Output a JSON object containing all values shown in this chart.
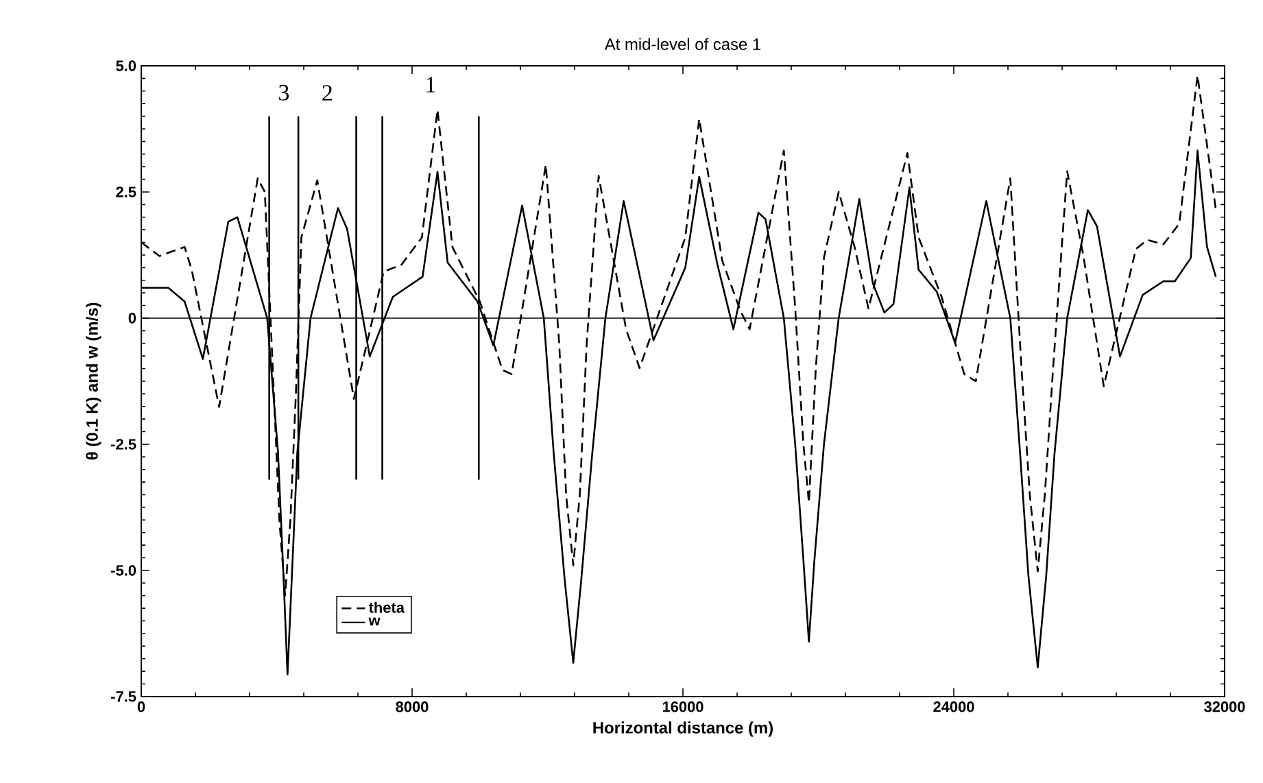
{
  "chart_data": {
    "type": "line",
    "title": "At mid-level of case 1",
    "xlabel": "Horizontal distance  (m)",
    "ylabel": "θ (0.1 K) and w (m/s)",
    "xlim": [
      0,
      32000
    ],
    "xticks": [
      0,
      8000,
      16000,
      24000,
      32000
    ],
    "ylim": [
      -7.5,
      5
    ],
    "yticks": [
      {
        "value": 5,
        "label": "5.0"
      },
      {
        "value": 2.5,
        "label": "2.5"
      },
      0,
      {
        "value": -2.5,
        "label": "-2.5"
      },
      {
        "value": -5,
        "label": "-5.0"
      },
      {
        "value": -7.5,
        "label": "-7.5"
      }
    ],
    "grid": false,
    "legend": "bottom left",
    "ref_lines": [
      {
        "axis": "y",
        "value": 0,
        "color": "#000000",
        "line_style": "solid"
      }
    ],
    "annotations": [
      "3",
      "2",
      "1"
    ],
    "series": [
      {
        "name": "theta",
        "color": "#000000",
        "line_style": "dashed",
        "x": [
          0,
          540,
          1280,
          1490,
          2300,
          3440,
          3650,
          3918,
          4080,
          4250,
          4405,
          4567,
          4730,
          5200,
          6280,
          7160,
          7690,
          8290,
          8750,
          9190,
          10000,
          10670,
          10940,
          11950,
          12346,
          12549,
          12760,
          12954,
          13157,
          13510,
          14320,
          14720,
          16070,
          16480,
          17160,
          17700,
          17970,
          18980,
          19316,
          19559,
          19721,
          19924,
          20166,
          20600,
          21070,
          21480,
          22630,
          22962,
          23640,
          24310,
          24650,
          25670,
          26002,
          26245,
          26480,
          26690,
          26933,
          27350,
          27830,
          28430,
          29380,
          29720,
          30190,
          30660,
          31200,
          31740
        ],
        "values": [
          1.5,
          1.23,
          1.41,
          0.96,
          -1.76,
          2.77,
          2.5,
          -1.5,
          -4.0,
          -5.5,
          -4.0,
          -1.5,
          1.6,
          2.73,
          -1.6,
          0.92,
          1.06,
          1.6,
          4.13,
          1.41,
          0.33,
          -1.03,
          -1.11,
          3.04,
          -0.5,
          -3.5,
          -4.9,
          -3.5,
          -0.5,
          2.82,
          -0.22,
          -0.99,
          1.6,
          3.95,
          1.14,
          0.14,
          -0.22,
          3.32,
          0.2,
          -2.5,
          -3.66,
          -1.0,
          1.2,
          2.5,
          1.41,
          0.19,
          3.27,
          1.6,
          0.42,
          -1.11,
          -1.25,
          2.77,
          -1.0,
          -3.5,
          -5.02,
          -3.5,
          -1.0,
          2.91,
          1.23,
          -1.35,
          1.37,
          1.55,
          1.46,
          1.87,
          4.81,
          2.15
        ]
      },
      {
        "name": "w",
        "color": "#000000",
        "line_style": "solid",
        "x": [
          0,
          800,
          1280,
          1820,
          2570,
          2840,
          3720,
          4040,
          4200,
          4320,
          4450,
          4610,
          5000,
          5810,
          6080,
          6750,
          7430,
          8310,
          8750,
          9050,
          9930,
          10400,
          11250,
          11890,
          12185,
          12509,
          12760,
          12995,
          13319,
          13710,
          14250,
          15130,
          16070,
          16480,
          17020,
          17490,
          18230,
          18440,
          18980,
          19316,
          19559,
          19720,
          19883,
          20166,
          20600,
          21210,
          21610,
          21950,
          22220,
          22690,
          22960,
          23500,
          24040,
          24960,
          25670,
          25961,
          26204,
          26480,
          26731,
          26974,
          27350,
          27960,
          28230,
          28910,
          29580,
          30190,
          30530,
          31000,
          31200,
          31480,
          31740
        ],
        "values": [
          0.6,
          0.6,
          0.33,
          -0.81,
          1.91,
          2.0,
          0,
          -2.66,
          -5.1,
          -7.06,
          -5.1,
          -2.66,
          0,
          2.18,
          1.77,
          -0.76,
          0.42,
          0.82,
          2.9,
          1.1,
          0.33,
          -0.54,
          2.23,
          0,
          -2.7,
          -5.2,
          -6.83,
          -5.2,
          -2.7,
          0,
          2.32,
          -0.44,
          1.0,
          2.8,
          1.06,
          -0.22,
          2.09,
          1.96,
          0,
          -2.5,
          -4.8,
          -6.41,
          -4.8,
          -2.5,
          0,
          2.36,
          0.69,
          0.11,
          0.28,
          2.59,
          0.96,
          0.52,
          -0.49,
          2.32,
          0,
          -2.7,
          -5.1,
          -6.92,
          -5.1,
          -2.7,
          0,
          2.14,
          1.82,
          -0.76,
          0.46,
          0.73,
          0.73,
          1.19,
          3.32,
          1.41,
          0.82
        ]
      },
      {
        "type": "line",
        "color": "#000000",
        "line_style": "solid",
        "x": [
          3780,
          3780
        ],
        "values": [
          -3.2,
          4.0
        ]
      },
      {
        "type": "line",
        "color": "#000000",
        "line_style": "solid",
        "x": [
          4640,
          4640
        ],
        "values": [
          -3.2,
          4.0
        ]
      },
      {
        "type": "line",
        "color": "#000000",
        "line_style": "solid",
        "x": [
          6350,
          6350
        ],
        "values": [
          -3.2,
          4.0
        ]
      },
      {
        "type": "line",
        "color": "#000000",
        "line_style": "solid",
        "x": [
          7120,
          7120
        ],
        "values": [
          -3.2,
          4.0
        ]
      },
      {
        "type": "line",
        "color": "#000000",
        "line_style": "solid",
        "x": [
          9970,
          9970
        ],
        "values": [
          -3.2,
          4.0
        ]
      }
    ]
  }
}
